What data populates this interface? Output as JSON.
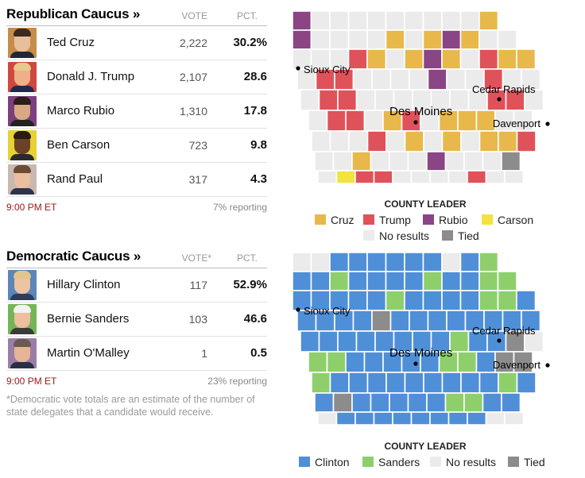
{
  "colors": {
    "cruz": "#e8b84a",
    "trump": "#e0525a",
    "rubio": "#8a4585",
    "carson": "#f2e33e",
    "clinton": "#4f8fd8",
    "sanders": "#8ecf6c",
    "no_results": "#ebebeb",
    "tied": "#8c8c8c",
    "time": "#a01818"
  },
  "republican": {
    "title": "Republican Caucus »",
    "vote_header": "VOTE",
    "pct_header": "PCT.",
    "candidates": [
      {
        "name": "Ted Cruz",
        "votes": "2,222",
        "pct": "30.2%",
        "photo": "ted-cruz-photo",
        "bg": "#c78c4a",
        "skin": "#e7bf9a",
        "hair": "#3b2a1f",
        "suit": "#22263a"
      },
      {
        "name": "Donald J. Trump",
        "votes": "2,107",
        "pct": "28.6",
        "photo": "donald-trump-photo",
        "bg": "#d0473f",
        "skin": "#eeb08a",
        "hair": "#e7c98a",
        "suit": "#1e2a4a"
      },
      {
        "name": "Marco Rubio",
        "votes": "1,310",
        "pct": "17.8",
        "photo": "marco-rubio-photo",
        "bg": "#7a3f7c",
        "skin": "#d9a883",
        "hair": "#2a1e18",
        "suit": "#222"
      },
      {
        "name": "Ben Carson",
        "votes": "723",
        "pct": "9.8",
        "photo": "ben-carson-photo",
        "bg": "#e6d232",
        "skin": "#6b4127",
        "hair": "#2a1a12",
        "suit": "#2a2a2a"
      },
      {
        "name": "Rand Paul",
        "votes": "317",
        "pct": "4.3",
        "photo": "rand-paul-photo",
        "bg": "#c8b8b0",
        "skin": "#ebbf9d",
        "hair": "#6d4b33",
        "suit": "#2d3348"
      }
    ],
    "time": "9:00 PM ET",
    "reporting": "7% reporting"
  },
  "democratic": {
    "title": "Democratic Caucus »",
    "vote_header": "VOTE*",
    "pct_header": "PCT.",
    "candidates": [
      {
        "name": "Hillary Clinton",
        "votes": "117",
        "pct": "52.9%",
        "photo": "hillary-clinton-photo",
        "bg": "#5a86b8",
        "skin": "#ecc3a3",
        "hair": "#e0c68e",
        "suit": "#2f3c5a"
      },
      {
        "name": "Bernie Sanders",
        "votes": "103",
        "pct": "46.6",
        "photo": "bernie-sanders-photo",
        "bg": "#76b556",
        "skin": "#edbf9f",
        "hair": "#f2f2f2",
        "suit": "#3a3a3a"
      },
      {
        "name": "Martin O'Malley",
        "votes": "1",
        "pct": "0.5",
        "photo": "martin-omalley-photo",
        "bg": "#9a7ea8",
        "skin": "#e6b496",
        "hair": "#6a5a52",
        "suit": "#2b2f45"
      }
    ],
    "time": "9:00 PM ET",
    "reporting": "23% reporting"
  },
  "footnote": "*Democratic vote totals are an estimate of the number of state delegates that a candidate would receive.",
  "map_rep": {
    "cities": {
      "sioux": "Sioux City",
      "cedar": "Cedar Rapids",
      "desmoines": "Des Moines",
      "davenport": "Davenport"
    },
    "legend_title": "COUNTY LEADER",
    "legend": {
      "cruz": "Cruz",
      "trump": "Trump",
      "rubio": "Rubio",
      "carson": "Carson",
      "no_results": "No results",
      "tied": "Tied"
    }
  },
  "map_dem": {
    "cities": {
      "sioux": "Sioux City",
      "cedar": "Cedar Rapids",
      "desmoines": "Des Moines",
      "davenport": "Davenport"
    },
    "legend_title": "COUNTY LEADER",
    "legend": {
      "clinton": "Clinton",
      "sanders": "Sanders",
      "no_results": "No results",
      "tied": "Tied"
    }
  }
}
